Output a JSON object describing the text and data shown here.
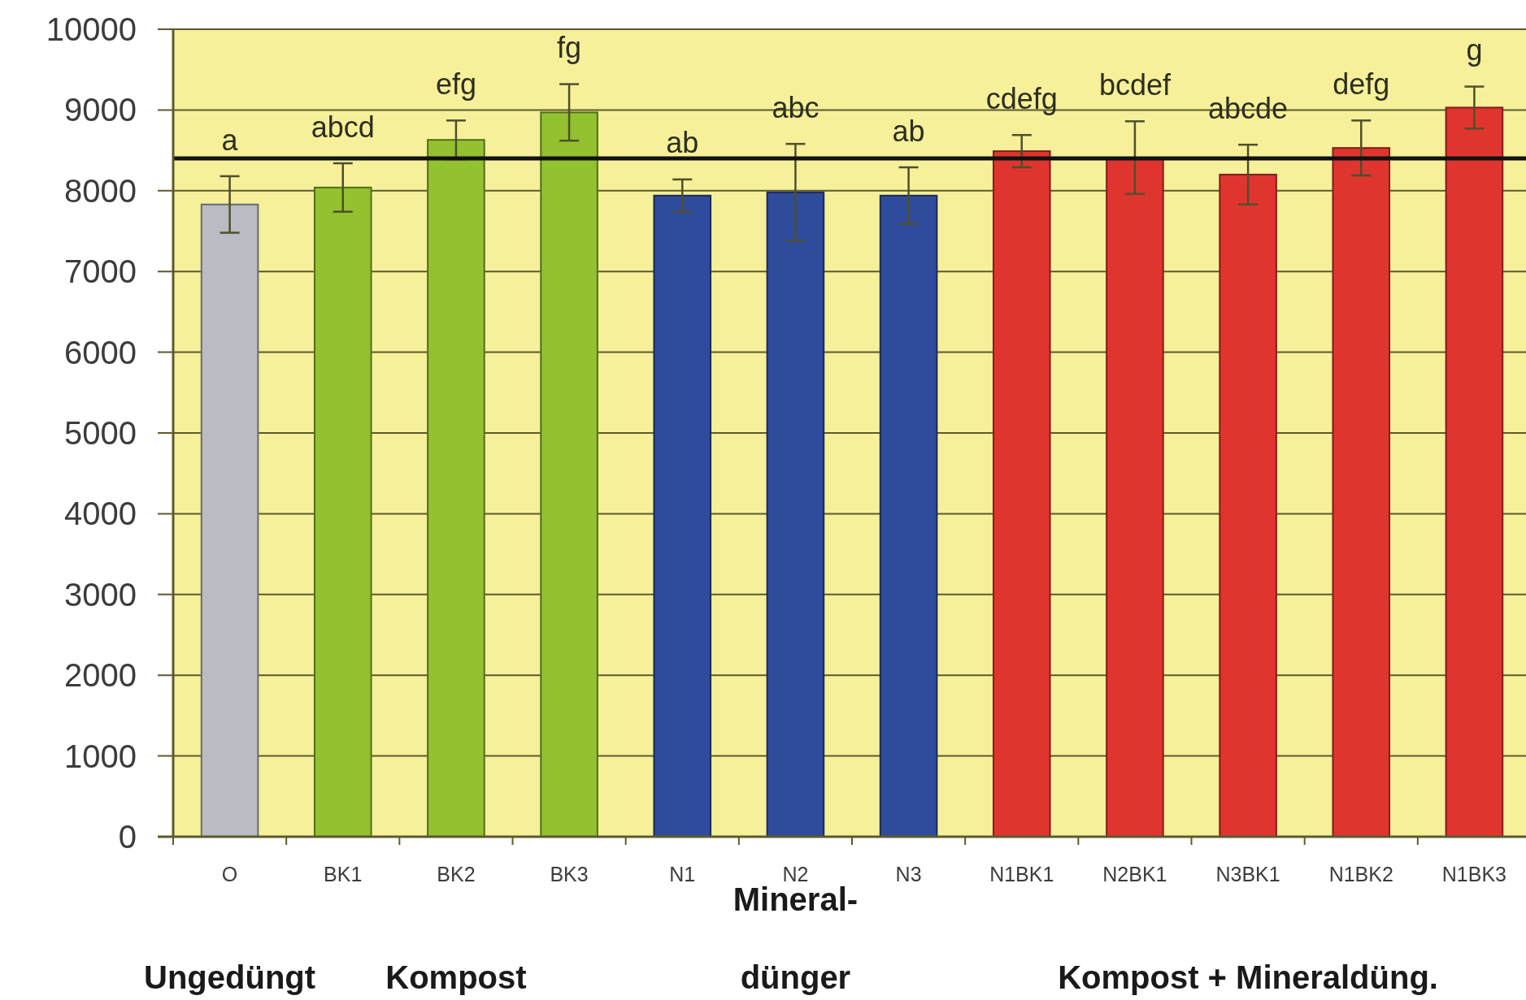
{
  "chart_data": {
    "type": "bar",
    "categories": [
      "O",
      "BK1",
      "BK2",
      "BK3",
      "N1",
      "N2",
      "N3",
      "N1BK1",
      "N2BK1",
      "N3BK1",
      "N1BK2",
      "N1BK3"
    ],
    "values": [
      7830,
      8040,
      8630,
      8970,
      7940,
      7980,
      7940,
      8490,
      8410,
      8200,
      8530,
      9030
    ],
    "colors": [
      "#b9bcc3",
      "#93c12f",
      "#93c12f",
      "#93c12f",
      "#2f4b9c",
      "#2f4b9c",
      "#2f4b9c",
      "#e0352f",
      "#e0352f",
      "#e0352f",
      "#e0352f",
      "#e0352f"
    ],
    "errors": [
      350,
      300,
      240,
      350,
      200,
      600,
      350,
      200,
      450,
      370,
      340,
      260
    ],
    "ylim": [
      0,
      10000
    ],
    "yticks": [
      0,
      1000,
      2000,
      3000,
      4000,
      5000,
      6000,
      7000,
      8000,
      9000,
      10000
    ],
    "grid": "y",
    "ref_lines": [
      {
        "axis": "y",
        "value": 8400,
        "color": "#111111"
      }
    ],
    "annotations": [
      "a",
      "abcd",
      "efg",
      "fg",
      "ab",
      "abc",
      "ab",
      "cdefg",
      "bcdef",
      "abcde",
      "defg",
      "g",
      "Ungedüngt",
      "Kompost",
      "Mineral- dünger",
      "Kompost + Mineraldüng."
    ]
  }
}
